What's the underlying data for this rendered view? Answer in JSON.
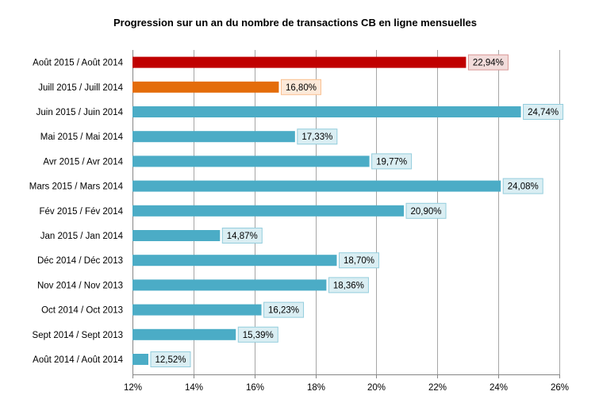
{
  "chart_data": {
    "type": "bar",
    "orientation": "horizontal",
    "title": "Progression sur un an du nombre de transactions CB en ligne mensuelles",
    "xlim": [
      12,
      26
    ],
    "xticks": [
      12,
      14,
      16,
      18,
      20,
      22,
      24,
      26
    ],
    "tick_labels": [
      "12%",
      "14%",
      "16%",
      "18%",
      "20%",
      "22%",
      "24%",
      "26%"
    ],
    "grid": "vertical",
    "categories": [
      "Août 2015 / Août 2014",
      "Juill 2015 / Juill 2014",
      "Juin 2015 / Juin 2014",
      "Mai 2015 / Mai 2014",
      "Avr 2015 / Avr 2014",
      "Mars 2015 / Mars 2014",
      "Fév 2015 / Fév 2014",
      "Jan 2015 / Jan 2014",
      "Déc 2014 / Déc 2013",
      "Nov 2014 / Nov 2013",
      "Oct 2014 / Oct 2013",
      "Sept 2014 / Sept 2013",
      "Août 2014 / Août 2014"
    ],
    "values": [
      22.94,
      16.8,
      24.74,
      17.33,
      19.77,
      24.08,
      20.9,
      14.87,
      18.7,
      18.36,
      16.23,
      15.39,
      12.52
    ],
    "value_labels": [
      "22,94%",
      "16,80%",
      "24,74%",
      "17,33%",
      "19,77%",
      "24,08%",
      "20,90%",
      "14,87%",
      "18,70%",
      "18,36%",
      "16,23%",
      "15,39%",
      "12,52%"
    ],
    "colors": [
      "#c00000",
      "#e46c0a",
      "#4bacc6",
      "#4bacc6",
      "#4bacc6",
      "#4bacc6",
      "#4bacc6",
      "#4bacc6",
      "#4bacc6",
      "#4bacc6",
      "#4bacc6",
      "#4bacc6",
      "#4bacc6"
    ],
    "label_fills": [
      "#f2dcdb",
      "#fde9d9",
      "#daeef3",
      "#daeef3",
      "#daeef3",
      "#daeef3",
      "#daeef3",
      "#daeef3",
      "#daeef3",
      "#daeef3",
      "#daeef3",
      "#daeef3",
      "#daeef3"
    ],
    "label_borders": [
      "#d99694",
      "#fac090",
      "#93cddd",
      "#93cddd",
      "#93cddd",
      "#93cddd",
      "#93cddd",
      "#93cddd",
      "#93cddd",
      "#93cddd",
      "#93cddd",
      "#93cddd",
      "#93cddd"
    ],
    "gridline_color": "#a6a6a6",
    "axis_color": "#868686"
  }
}
